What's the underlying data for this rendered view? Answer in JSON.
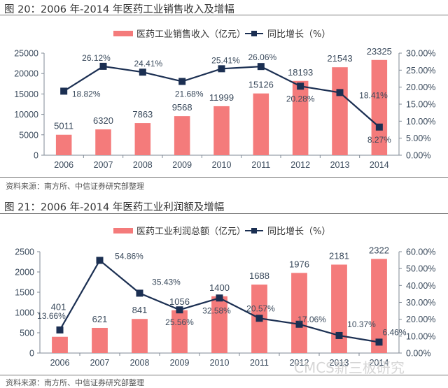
{
  "colors": {
    "bar": "#f47b7b",
    "line": "#1b2f52",
    "axis": "#7f8a96"
  },
  "figures": [
    {
      "title": "图 20：2006 年-2014 年医药工业销售收入及增幅",
      "source": "资料来源：南方所、中信证券研究部整理"
    },
    {
      "title": "图 21：2006 年-2014 年医药工业利润额及增幅",
      "source": "资料来源：南方所、中信证券研究部整理"
    }
  ],
  "watermark": "CMCS新三板研究",
  "chart_data": [
    {
      "type": "bar",
      "title": "图 20：2006 年-2014 年医药工业销售收入及增幅",
      "categories": [
        "2006",
        "2007",
        "2008",
        "2009",
        "2010",
        "2011",
        "2012",
        "2013",
        "2014"
      ],
      "series": [
        {
          "name": "医药工业销售收入（亿元）",
          "type": "bar",
          "axis": "left",
          "values": [
            5011,
            6320,
            7863,
            9568,
            11999,
            15126,
            18193,
            21543,
            23325
          ],
          "labels": [
            "5011",
            "6320",
            "7863",
            "9568",
            "11999",
            "15126",
            "18193",
            "21543",
            "23325"
          ]
        },
        {
          "name": "同比增长（%）",
          "type": "line",
          "axis": "right",
          "values": [
            18.82,
            26.12,
            24.41,
            21.68,
            25.41,
            26.06,
            20.28,
            18.41,
            8.27
          ],
          "labels": [
            "18.82%",
            "26.12%",
            "24.41%",
            "21.68%",
            "25.41%",
            "26.06%",
            "20.28%",
            "18.41%",
            "8.27%"
          ]
        }
      ],
      "ylim": [
        0,
        25000
      ],
      "yticks": [
        "0",
        "5000",
        "10000",
        "15000",
        "20000",
        "25000"
      ],
      "y2lim": [
        0,
        30
      ],
      "y2ticks": [
        "0.00%",
        "5.00%",
        "10.00%",
        "15.00%",
        "20.00%",
        "25.00%",
        "30.00%"
      ],
      "legend": "top-center",
      "grid": false
    },
    {
      "type": "bar",
      "title": "图 21：2006 年-2014 年医药工业利润额及增幅",
      "categories": [
        "2006",
        "2007",
        "2008",
        "2009",
        "2010",
        "2011",
        "2012",
        "2013",
        "2014"
      ],
      "series": [
        {
          "name": "医药工业利润总额（亿元）",
          "type": "bar",
          "axis": "left",
          "values": [
            401,
            621,
            841,
            1056,
            1400,
            1688,
            1976,
            2181,
            2322
          ],
          "labels": [
            "401",
            "621",
            "841",
            "1056",
            "1400",
            "1688",
            "1976",
            "2181",
            "2322"
          ]
        },
        {
          "name": "同比增长（%）",
          "type": "line",
          "axis": "right",
          "values": [
            13.66,
            54.86,
            35.43,
            25.56,
            32.58,
            20.57,
            17.06,
            10.37,
            6.46
          ],
          "labels": [
            "13.66%",
            "54.86%",
            "35.43%",
            "25.56%",
            "32.58%",
            "20.57%",
            "17.06%",
            "10.37%",
            "6.46%"
          ]
        }
      ],
      "ylim": [
        0,
        2500
      ],
      "yticks": [
        "0",
        "500",
        "1000",
        "1500",
        "2000",
        "2500"
      ],
      "y2lim": [
        0,
        60
      ],
      "y2ticks": [
        "0.00%",
        "10.00%",
        "20.00%",
        "30.00%",
        "40.00%",
        "50.00%",
        "60.00%"
      ],
      "legend": "top-center",
      "grid": false
    }
  ]
}
